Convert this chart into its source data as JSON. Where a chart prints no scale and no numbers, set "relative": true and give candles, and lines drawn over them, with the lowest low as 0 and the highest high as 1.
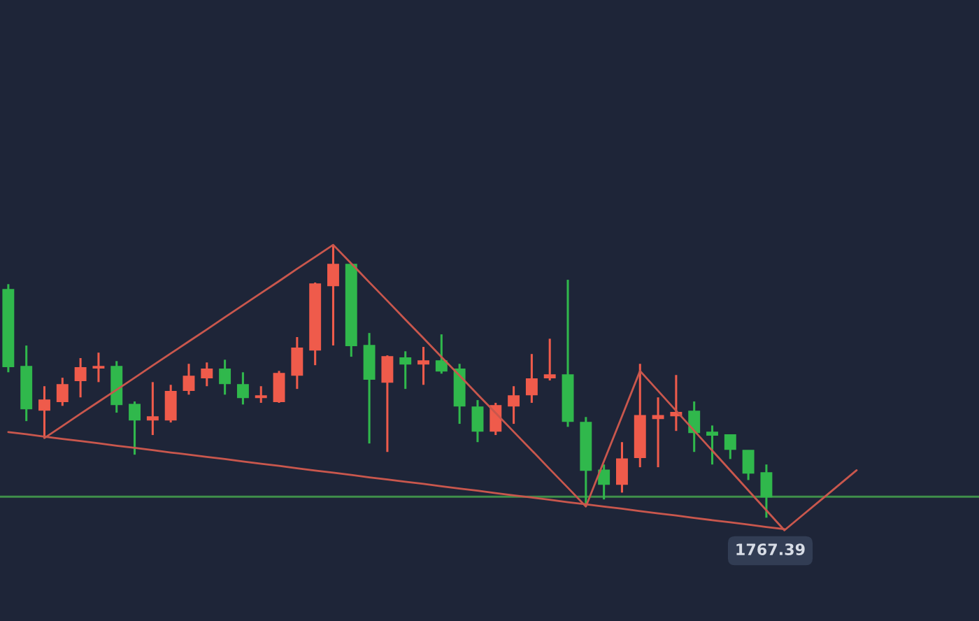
{
  "chart_data": {
    "type": "candlestick",
    "relative": true,
    "categories": [
      null,
      null,
      null,
      null,
      null,
      null,
      null,
      null,
      null,
      null,
      null,
      null,
      null,
      null,
      null,
      null,
      null,
      null,
      null,
      null,
      null,
      null,
      null,
      null,
      null,
      null,
      null,
      null,
      null,
      null,
      null,
      null,
      null,
      null,
      null,
      null,
      null,
      null,
      null,
      null,
      null,
      null,
      null,
      null,
      null,
      null,
      null,
      null,
      null,
      null,
      null,
      null,
      null,
      null
    ],
    "ohlc": [
      [
        0.836,
        0.856,
        0.533,
        0.554
      ],
      [
        0.554,
        0.631,
        0.354,
        0.4
      ],
      [
        0.395,
        0.482,
        0.292,
        0.431
      ],
      [
        0.426,
        0.513,
        0.41,
        0.487
      ],
      [
        0.503,
        0.585,
        0.441,
        0.549
      ],
      [
        0.549,
        0.605,
        0.497,
        0.554
      ],
      [
        0.554,
        0.574,
        0.385,
        0.415
      ],
      [
        0.415,
        0.426,
        0.231,
        0.359
      ],
      [
        0.359,
        0.497,
        0.303,
        0.369
      ],
      [
        0.359,
        0.487,
        0.349,
        0.462
      ],
      [
        0.467,
        0.564,
        0.451,
        0.518
      ],
      [
        0.513,
        0.569,
        0.482,
        0.544
      ],
      [
        0.544,
        0.579,
        0.451,
        0.492
      ],
      [
        0.487,
        0.533,
        0.415,
        0.441
      ],
      [
        0.441,
        0.482,
        0.421,
        0.446
      ],
      [
        0.426,
        0.538,
        0.421,
        0.528
      ],
      [
        0.523,
        0.662,
        0.472,
        0.621
      ],
      [
        0.615,
        0.862,
        0.559,
        0.856
      ],
      [
        0.851,
        1.0,
        0.631,
        0.928
      ],
      [
        0.928,
        0.928,
        0.59,
        0.631
      ],
      [
        0.631,
        0.677,
        0.272,
        0.508
      ],
      [
        0.497,
        0.595,
        0.241,
        0.59
      ],
      [
        0.585,
        0.61,
        0.472,
        0.564
      ],
      [
        0.564,
        0.626,
        0.487,
        0.574
      ],
      [
        0.574,
        0.672,
        0.528,
        0.538
      ],
      [
        0.544,
        0.564,
        0.344,
        0.41
      ],
      [
        0.405,
        0.431,
        0.277,
        0.318
      ],
      [
        0.318,
        0.421,
        0.303,
        0.41
      ],
      [
        0.41,
        0.482,
        0.344,
        0.446
      ],
      [
        0.451,
        0.6,
        0.421,
        0.508
      ],
      [
        0.513,
        0.656,
        0.503,
        0.523
      ],
      [
        0.523,
        0.872,
        0.333,
        0.354
      ],
      [
        0.349,
        0.369,
        0.041,
        0.174
      ],
      [
        0.174,
        0.195,
        0.067,
        0.123
      ],
      [
        0.123,
        0.277,
        0.092,
        0.215
      ],
      [
        0.221,
        0.564,
        0.185,
        0.374
      ],
      [
        0.364,
        0.441,
        0.185,
        0.374
      ],
      [
        0.374,
        0.523,
        0.318,
        0.385
      ],
      [
        0.39,
        0.426,
        0.241,
        0.313
      ],
      [
        0.313,
        0.338,
        0.195,
        0.303
      ],
      [
        0.303,
        0.303,
        0.215,
        0.251
      ],
      [
        0.246,
        0.246,
        0.138,
        0.164
      ],
      [
        0.164,
        0.195,
        0.0,
        0.077
      ],
      null,
      null,
      null,
      null,
      null,
      null,
      null,
      null,
      null,
      null,
      null
    ],
    "colors": [
      "#30b84c",
      "#30b84c",
      "#ef5b4b",
      "#ef5b4b",
      "#ef5b4b",
      "#ef5b4b",
      "#30b84c",
      "#30b84c",
      "#ef5b4b",
      "#ef5b4b",
      "#ef5b4b",
      "#ef5b4b",
      "#30b84c",
      "#30b84c",
      "#ef5b4b",
      "#ef5b4b",
      "#ef5b4b",
      "#ef5b4b",
      "#ef5b4b",
      "#30b84c",
      "#30b84c",
      "#ef5b4b",
      "#30b84c",
      "#ef5b4b",
      "#30b84c",
      "#30b84c",
      "#30b84c",
      "#ef5b4b",
      "#ef5b4b",
      "#ef5b4b",
      "#ef5b4b",
      "#30b84c",
      "#30b84c",
      "#30b84c",
      "#ef5b4b",
      "#ef5b4b",
      "#ef5b4b",
      "#ef5b4b",
      "#30b84c",
      "#30b84c",
      "#30b84c",
      "#30b84c",
      "#30b84c",
      null,
      null,
      null,
      null,
      null,
      null,
      null,
      null,
      null,
      null,
      null
    ],
    "series": [
      {
        "type": "line",
        "color": "#c9574d",
        "values": [
          null,
          null,
          0.292,
          0.336,
          0.381,
          0.425,
          0.469,
          0.513,
          0.558,
          0.602,
          0.646,
          0.69,
          0.735,
          0.779,
          0.823,
          0.867,
          0.912,
          0.956,
          1.0,
          0.932,
          0.863,
          0.795,
          0.726,
          0.658,
          0.589,
          0.521,
          0.452,
          0.384,
          0.315,
          0.247,
          0.178,
          0.11,
          0.041,
          0.207,
          0.372,
          0.538,
          0.465,
          0.392,
          0.319,
          0.246,
          0.173,
          0.1,
          0.027,
          -0.046,
          0.009,
          0.064,
          0.119,
          0.174,
          null,
          null,
          null,
          null,
          null,
          null
        ]
      },
      {
        "type": "line",
        "color": "#c9574d",
        "values": [
          0.314,
          0.306,
          0.297,
          0.289,
          0.281,
          0.273,
          0.264,
          0.256,
          0.248,
          0.239,
          0.231,
          0.223,
          0.215,
          0.206,
          0.198,
          0.19,
          0.181,
          0.173,
          0.165,
          0.157,
          0.148,
          0.14,
          0.132,
          0.124,
          0.115,
          0.107,
          0.099,
          0.09,
          0.082,
          0.074,
          0.066,
          0.057,
          0.049,
          0.041,
          0.033,
          0.024,
          0.016,
          0.008,
          -0.001,
          -0.009,
          -0.017,
          -0.025,
          -0.034,
          -0.042,
          null,
          null,
          null,
          null,
          null,
          null,
          null,
          null,
          null,
          null
        ]
      }
    ],
    "ref_lines": [
      {
        "axis": "y",
        "value": 0.077,
        "color": "#3f8f4a"
      }
    ],
    "annotations": [
      "1767.39"
    ]
  }
}
